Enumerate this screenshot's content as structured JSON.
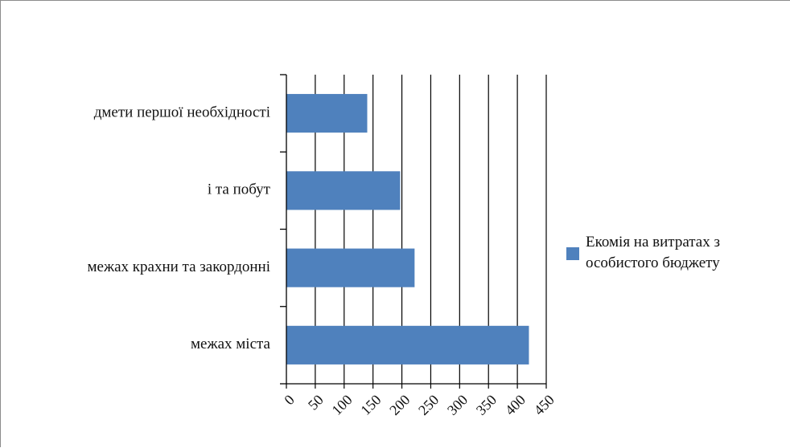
{
  "chart_data": {
    "type": "bar",
    "orientation": "horizontal",
    "categories": [
      "дмети першої необхідності",
      "і та побут",
      " межах крахни та закордонні",
      "межах міста"
    ],
    "series": [
      {
        "name": "Екомія на витратах з особистого бюджету",
        "values": [
          140,
          197,
          222,
          420
        ],
        "color": "#4f81bd"
      }
    ],
    "xlim": [
      0,
      450
    ],
    "xticks": [
      "0",
      "50",
      "100",
      "150",
      "200",
      "250",
      "300",
      "350",
      "400",
      "450"
    ],
    "grid": "vertical",
    "legend": "right"
  },
  "legend": {
    "line1": "Екомія на витратах з",
    "line2": "особистого бюджету"
  }
}
